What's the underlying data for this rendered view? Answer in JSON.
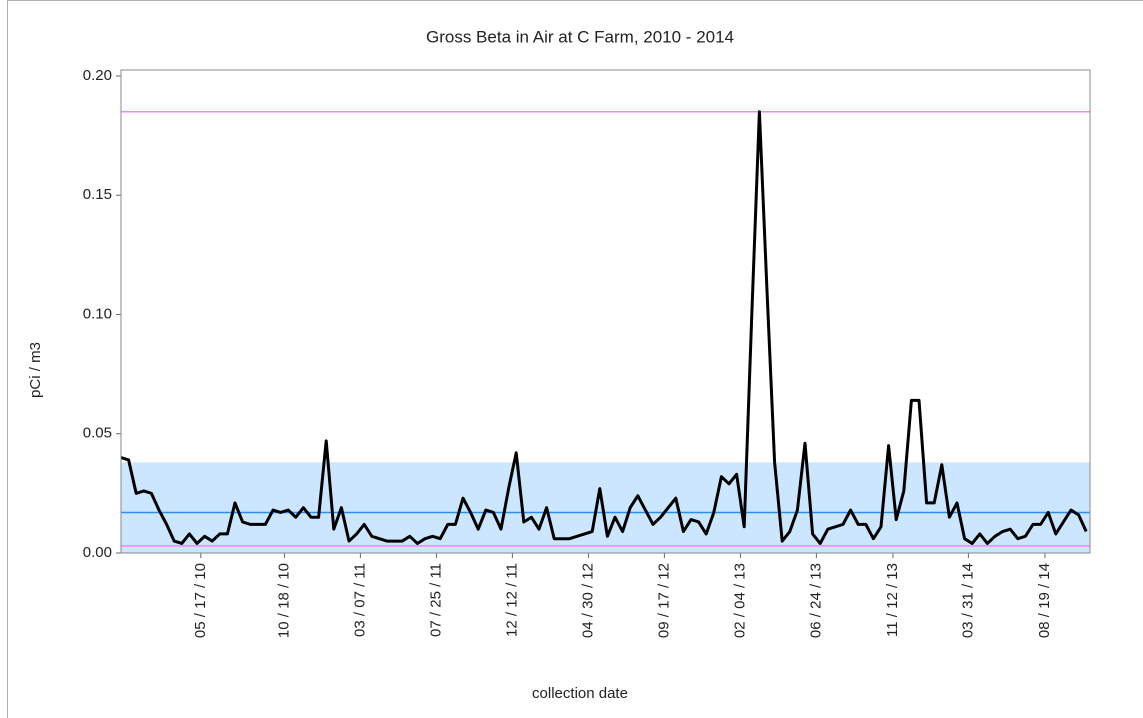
{
  "chart_data": {
    "type": "line",
    "title": "Gross Beta in Air at C Farm, 2010 - 2014",
    "x_label": "collection date",
    "y_label": "pCi / m3",
    "color": "#000000",
    "x": [
      "2009-12-21",
      "2010-01-04",
      "2010-01-18",
      "2010-02-01",
      "2010-02-15",
      "2010-03-01",
      "2010-03-15",
      "2010-03-29",
      "2010-04-12",
      "2010-04-26",
      "2010-05-10",
      "2010-05-24",
      "2010-06-07",
      "2010-06-21",
      "2010-07-05",
      "2010-07-19",
      "2010-08-02",
      "2010-08-16",
      "2010-08-30",
      "2010-09-13",
      "2010-09-27",
      "2010-10-11",
      "2010-10-25",
      "2010-11-08",
      "2010-11-22",
      "2010-12-06",
      "2010-12-20",
      "2011-01-03",
      "2011-01-17",
      "2011-01-31",
      "2011-02-14",
      "2011-02-28",
      "2011-03-14",
      "2011-03-28",
      "2011-04-11",
      "2011-04-25",
      "2011-05-09",
      "2011-05-23",
      "2011-06-06",
      "2011-06-20",
      "2011-07-04",
      "2011-07-18",
      "2011-08-01",
      "2011-08-15",
      "2011-08-29",
      "2011-09-12",
      "2011-09-26",
      "2011-10-10",
      "2011-10-24",
      "2011-11-07",
      "2011-11-21",
      "2011-12-05",
      "2011-12-19",
      "2012-01-02",
      "2012-01-16",
      "2012-01-30",
      "2012-02-13",
      "2012-02-27",
      "2012-03-12",
      "2012-03-26",
      "2012-04-09",
      "2012-04-23",
      "2012-05-07",
      "2012-05-21",
      "2012-06-04",
      "2012-06-18",
      "2012-07-02",
      "2012-07-16",
      "2012-07-30",
      "2012-08-13",
      "2012-08-27",
      "2012-09-10",
      "2012-09-24",
      "2012-10-08",
      "2012-10-22",
      "2012-11-05",
      "2012-11-19",
      "2012-12-03",
      "2012-12-17",
      "2012-12-31",
      "2013-01-14",
      "2013-01-28",
      "2013-02-11",
      "2013-02-25",
      "2013-03-11",
      "2013-03-25",
      "2013-04-08",
      "2013-04-22",
      "2013-05-06",
      "2013-05-20",
      "2013-06-03",
      "2013-06-17",
      "2013-07-01",
      "2013-07-15",
      "2013-07-29",
      "2013-08-12",
      "2013-08-26",
      "2013-09-09",
      "2013-09-23",
      "2013-10-07",
      "2013-10-21",
      "2013-11-04",
      "2013-11-18",
      "2013-12-02",
      "2013-12-16",
      "2013-12-30",
      "2014-01-13",
      "2014-01-27",
      "2014-02-10",
      "2014-02-24",
      "2014-03-10",
      "2014-03-24",
      "2014-04-07",
      "2014-04-21",
      "2014-05-05",
      "2014-05-19",
      "2014-06-02",
      "2014-06-16",
      "2014-06-30",
      "2014-07-14",
      "2014-07-28",
      "2014-08-11",
      "2014-08-25",
      "2014-09-08",
      "2014-09-22",
      "2014-10-06",
      "2014-10-20",
      "2014-11-03"
    ],
    "values": [
      0.04,
      0.039,
      0.025,
      0.026,
      0.025,
      0.018,
      0.012,
      0.005,
      0.004,
      0.008,
      0.004,
      0.007,
      0.005,
      0.008,
      0.008,
      0.021,
      0.013,
      0.012,
      0.012,
      0.012,
      0.018,
      0.017,
      0.018,
      0.015,
      0.019,
      0.015,
      0.015,
      0.047,
      0.01,
      0.019,
      0.005,
      0.008,
      0.012,
      0.007,
      0.006,
      0.005,
      0.005,
      0.005,
      0.007,
      0.004,
      0.006,
      0.007,
      0.006,
      0.012,
      0.012,
      0.023,
      0.017,
      0.01,
      0.018,
      0.017,
      0.01,
      0.027,
      0.042,
      0.013,
      0.015,
      0.01,
      0.019,
      0.006,
      0.006,
      0.006,
      0.007,
      0.008,
      0.009,
      0.027,
      0.007,
      0.015,
      0.009,
      0.019,
      0.024,
      0.018,
      0.012,
      0.015,
      0.019,
      0.023,
      0.009,
      0.014,
      0.013,
      0.008,
      0.017,
      0.032,
      0.029,
      0.033,
      0.011,
      0.1,
      0.185,
      0.11,
      0.038,
      0.005,
      0.009,
      0.018,
      0.046,
      0.008,
      0.004,
      0.01,
      0.011,
      0.012,
      0.018,
      0.012,
      0.012,
      0.006,
      0.011,
      0.045,
      0.014,
      0.026,
      0.064,
      0.064,
      0.021,
      0.021,
      0.037,
      0.015,
      0.021,
      0.006,
      0.004,
      0.008,
      0.004,
      0.007,
      0.009,
      0.01,
      0.006,
      0.007,
      0.012,
      0.012,
      0.017,
      0.008,
      0.013,
      0.018,
      0.016,
      0.009
    ],
    "xlim": [
      "2009-12-21",
      "2014-11-10"
    ],
    "xticks": [
      {
        "value": "2010-05-17",
        "label": "05 / 17 / 10"
      },
      {
        "value": "2010-10-18",
        "label": "10 / 18 / 10"
      },
      {
        "value": "2011-03-07",
        "label": "03 / 07 / 11"
      },
      {
        "value": "2011-07-25",
        "label": "07 / 25 / 11"
      },
      {
        "value": "2011-12-12",
        "label": "12 / 12 / 11"
      },
      {
        "value": "2012-04-30",
        "label": "04 / 30 / 12"
      },
      {
        "value": "2012-09-17",
        "label": "09 / 17 / 12"
      },
      {
        "value": "2013-02-04",
        "label": "02 / 04 / 13"
      },
      {
        "value": "2013-06-24",
        "label": "06 / 24 / 13"
      },
      {
        "value": "2013-11-12",
        "label": "11 / 12 / 13"
      },
      {
        "value": "2014-03-31",
        "label": "03 / 31 / 14"
      },
      {
        "value": "2014-08-19",
        "label": "08 / 19 / 14"
      }
    ],
    "ylim": [
      0,
      0.2025
    ],
    "yticks": [
      {
        "value": 0,
        "label": "0.00"
      },
      {
        "value": 0.05,
        "label": "0.05"
      },
      {
        "value": 0.1,
        "label": "0.10"
      },
      {
        "value": 0.15,
        "label": "0.15"
      },
      {
        "value": 0.2,
        "label": "0.20"
      }
    ],
    "bands": [
      {
        "from": 0,
        "to": 0.038,
        "color": "#cce6ff"
      }
    ],
    "hlines": [
      {
        "value": 0.185,
        "color": "#ff80ff"
      },
      {
        "value": 0.003,
        "color": "#ff80ff"
      },
      {
        "value": 0.017,
        "color": "#2b8ff0"
      }
    ]
  }
}
